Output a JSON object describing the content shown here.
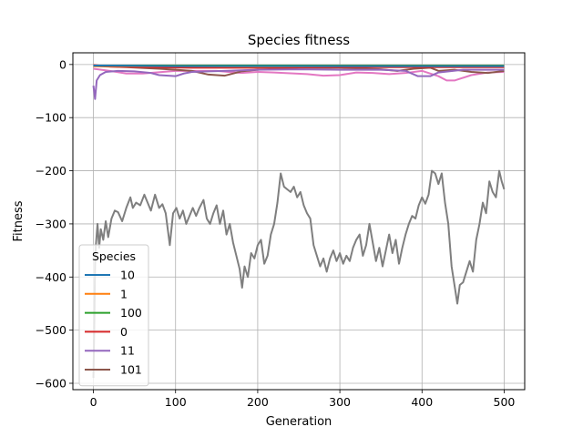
{
  "chart_data": {
    "type": "line",
    "title": "Species fitness",
    "xlabel": "Generation",
    "ylabel": "Fitness",
    "xlim": [
      -25,
      525
    ],
    "ylim": [
      -612,
      22
    ],
    "xticks": [
      0,
      100,
      200,
      300,
      400,
      500
    ],
    "yticks": [
      0,
      -100,
      -200,
      -300,
      -400,
      -500,
      -600
    ],
    "grid": true,
    "legend": {
      "title": "Species",
      "placement": "lower-left"
    },
    "series": [
      {
        "name": "10",
        "color": "#1f77b4",
        "points": [
          [
            0,
            -2
          ],
          [
            100,
            -3
          ],
          [
            200,
            -3
          ],
          [
            300,
            -3
          ],
          [
            400,
            -3
          ],
          [
            500,
            -3
          ]
        ]
      },
      {
        "name": "1",
        "color": "#ff7f0e",
        "points": [
          [
            0,
            -3
          ],
          [
            100,
            -3
          ],
          [
            200,
            -4
          ],
          [
            300,
            -3
          ],
          [
            400,
            -3
          ],
          [
            500,
            -3
          ]
        ]
      },
      {
        "name": "100",
        "color": "#2ca02c",
        "points": [
          [
            0,
            -2
          ],
          [
            100,
            -2
          ],
          [
            200,
            -2
          ],
          [
            300,
            -2
          ],
          [
            400,
            -2
          ],
          [
            500,
            -2
          ]
        ]
      },
      {
        "name": "0",
        "color": "#d62728",
        "points": [
          [
            0,
            -1
          ],
          [
            20,
            -4
          ],
          [
            60,
            -5
          ],
          [
            120,
            -6
          ],
          [
            200,
            -6
          ],
          [
            300,
            -5
          ],
          [
            400,
            -5
          ],
          [
            500,
            -5
          ]
        ]
      },
      {
        "name": "11",
        "color": "#9467bd",
        "points": [
          [
            0,
            -40
          ],
          [
            2,
            -65
          ],
          [
            4,
            -30
          ],
          [
            8,
            -20
          ],
          [
            15,
            -14
          ],
          [
            30,
            -12
          ],
          [
            50,
            -13
          ],
          [
            70,
            -16
          ],
          [
            80,
            -20
          ],
          [
            100,
            -22
          ],
          [
            110,
            -17
          ],
          [
            120,
            -14
          ],
          [
            140,
            -13
          ],
          [
            160,
            -12
          ],
          [
            200,
            -10
          ],
          [
            250,
            -9
          ],
          [
            300,
            -10
          ],
          [
            350,
            -10
          ],
          [
            380,
            -12
          ],
          [
            395,
            -22
          ],
          [
            410,
            -22
          ],
          [
            420,
            -15
          ],
          [
            450,
            -10
          ],
          [
            500,
            -10
          ]
        ]
      },
      {
        "name": "101",
        "color": "#8c564b",
        "points": [
          [
            0,
            -3
          ],
          [
            40,
            -5
          ],
          [
            80,
            -8
          ],
          [
            100,
            -10
          ],
          [
            120,
            -12
          ],
          [
            140,
            -19
          ],
          [
            160,
            -21
          ],
          [
            180,
            -13
          ],
          [
            200,
            -10
          ],
          [
            250,
            -6
          ],
          [
            300,
            -6
          ],
          [
            350,
            -9
          ],
          [
            370,
            -12
          ],
          [
            390,
            -8
          ],
          [
            410,
            -6
          ],
          [
            420,
            -12
          ],
          [
            440,
            -10
          ],
          [
            460,
            -14
          ],
          [
            480,
            -16
          ],
          [
            500,
            -12
          ]
        ]
      },
      {
        "name": "",
        "color": "#e377c2",
        "points": [
          [
            0,
            -8
          ],
          [
            20,
            -12
          ],
          [
            40,
            -17
          ],
          [
            60,
            -17
          ],
          [
            100,
            -12
          ],
          [
            150,
            -12
          ],
          [
            180,
            -16
          ],
          [
            200,
            -14
          ],
          [
            220,
            -15
          ],
          [
            260,
            -18
          ],
          [
            280,
            -21
          ],
          [
            300,
            -20
          ],
          [
            320,
            -15
          ],
          [
            340,
            -16
          ],
          [
            360,
            -18
          ],
          [
            380,
            -16
          ],
          [
            400,
            -12
          ],
          [
            420,
            -22
          ],
          [
            430,
            -30
          ],
          [
            440,
            -30
          ],
          [
            460,
            -20
          ],
          [
            480,
            -15
          ],
          [
            500,
            -14
          ]
        ]
      },
      {
        "name": "",
        "color": "#7f7f7f",
        "points": [
          [
            0,
            -590
          ],
          [
            1,
            -500
          ],
          [
            2,
            -380
          ],
          [
            3,
            -340
          ],
          [
            5,
            -300
          ],
          [
            7,
            -345
          ],
          [
            9,
            -310
          ],
          [
            12,
            -330
          ],
          [
            15,
            -295
          ],
          [
            18,
            -325
          ],
          [
            22,
            -290
          ],
          [
            26,
            -275
          ],
          [
            30,
            -278
          ],
          [
            35,
            -295
          ],
          [
            40,
            -270
          ],
          [
            45,
            -250
          ],
          [
            48,
            -270
          ],
          [
            52,
            -260
          ],
          [
            57,
            -265
          ],
          [
            62,
            -245
          ],
          [
            66,
            -260
          ],
          [
            70,
            -275
          ],
          [
            75,
            -245
          ],
          [
            80,
            -270
          ],
          [
            84,
            -263
          ],
          [
            88,
            -280
          ],
          [
            93,
            -340
          ],
          [
            97,
            -280
          ],
          [
            101,
            -270
          ],
          [
            105,
            -290
          ],
          [
            109,
            -275
          ],
          [
            113,
            -300
          ],
          [
            117,
            -285
          ],
          [
            121,
            -270
          ],
          [
            125,
            -285
          ],
          [
            129,
            -270
          ],
          [
            134,
            -255
          ],
          [
            138,
            -290
          ],
          [
            142,
            -300
          ],
          [
            146,
            -280
          ],
          [
            150,
            -265
          ],
          [
            154,
            -300
          ],
          [
            158,
            -275
          ],
          [
            162,
            -320
          ],
          [
            166,
            -300
          ],
          [
            170,
            -335
          ],
          [
            174,
            -360
          ],
          [
            178,
            -385
          ],
          [
            181,
            -420
          ],
          [
            184,
            -380
          ],
          [
            188,
            -400
          ],
          [
            192,
            -355
          ],
          [
            196,
            -365
          ],
          [
            200,
            -340
          ],
          [
            204,
            -330
          ],
          [
            208,
            -375
          ],
          [
            212,
            -360
          ],
          [
            216,
            -320
          ],
          [
            220,
            -300
          ],
          [
            224,
            -260
          ],
          [
            228,
            -205
          ],
          [
            232,
            -230
          ],
          [
            236,
            -235
          ],
          [
            240,
            -240
          ],
          [
            244,
            -230
          ],
          [
            248,
            -250
          ],
          [
            252,
            -240
          ],
          [
            256,
            -265
          ],
          [
            260,
            -280
          ],
          [
            264,
            -290
          ],
          [
            268,
            -340
          ],
          [
            272,
            -360
          ],
          [
            276,
            -380
          ],
          [
            280,
            -365
          ],
          [
            284,
            -390
          ],
          [
            288,
            -365
          ],
          [
            292,
            -350
          ],
          [
            296,
            -370
          ],
          [
            300,
            -355
          ],
          [
            304,
            -375
          ],
          [
            308,
            -360
          ],
          [
            312,
            -370
          ],
          [
            316,
            -345
          ],
          [
            320,
            -330
          ],
          [
            324,
            -320
          ],
          [
            328,
            -360
          ],
          [
            332,
            -340
          ],
          [
            336,
            -300
          ],
          [
            340,
            -335
          ],
          [
            344,
            -370
          ],
          [
            348,
            -345
          ],
          [
            352,
            -380
          ],
          [
            356,
            -350
          ],
          [
            360,
            -320
          ],
          [
            364,
            -355
          ],
          [
            368,
            -330
          ],
          [
            372,
            -375
          ],
          [
            376,
            -345
          ],
          [
            380,
            -320
          ],
          [
            384,
            -300
          ],
          [
            388,
            -285
          ],
          [
            392,
            -290
          ],
          [
            396,
            -265
          ],
          [
            400,
            -250
          ],
          [
            404,
            -262
          ],
          [
            408,
            -245
          ],
          [
            412,
            -200
          ],
          [
            416,
            -205
          ],
          [
            420,
            -225
          ],
          [
            424,
            -205
          ],
          [
            428,
            -260
          ],
          [
            432,
            -300
          ],
          [
            436,
            -380
          ],
          [
            440,
            -420
          ],
          [
            443,
            -450
          ],
          [
            446,
            -415
          ],
          [
            450,
            -410
          ],
          [
            454,
            -390
          ],
          [
            458,
            -370
          ],
          [
            462,
            -390
          ],
          [
            466,
            -330
          ],
          [
            470,
            -300
          ],
          [
            474,
            -260
          ],
          [
            478,
            -280
          ],
          [
            482,
            -220
          ],
          [
            486,
            -240
          ],
          [
            490,
            -250
          ],
          [
            494,
            -200
          ],
          [
            497,
            -220
          ],
          [
            500,
            -235
          ]
        ]
      }
    ]
  }
}
